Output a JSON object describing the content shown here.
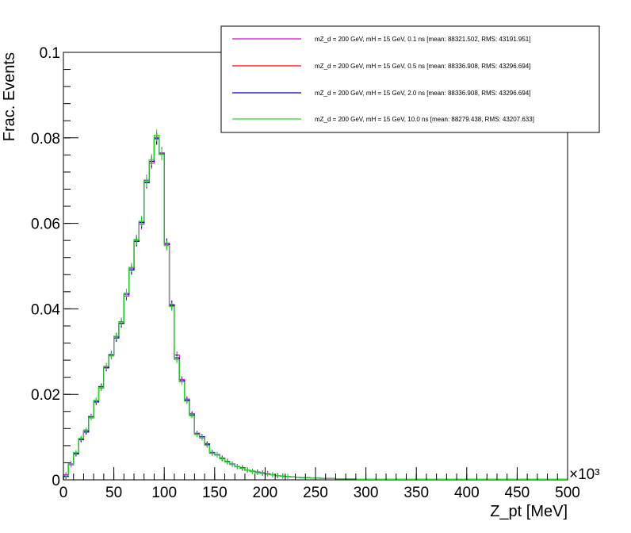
{
  "chart_data": {
    "type": "line",
    "style": "histogram-step",
    "xlabel": "Z_pt [MeV]",
    "ylabel": "Frac. Events",
    "x_multiplier": "×10³",
    "xlim": [
      0,
      500
    ],
    "ylim": [
      0,
      0.1
    ],
    "x_tick_labels": [
      "0",
      "50",
      "100",
      "150",
      "200",
      "250",
      "300",
      "350",
      "400",
      "450",
      "500"
    ],
    "y_tick_labels": [
      "0",
      "0.02",
      "0.04",
      "0.06",
      "0.08",
      "0.1"
    ],
    "x_tick_values": [
      0,
      50,
      100,
      150,
      200,
      250,
      300,
      350,
      400,
      450,
      500
    ],
    "y_tick_values": [
      0,
      0.02,
      0.04,
      0.06,
      0.08,
      0.1
    ],
    "grid": false,
    "legend_position": "top-right",
    "bin_width": 5,
    "bin_edges_start": 0,
    "series": [
      {
        "name": "mZ_d = 200 GeV, mH = 15 GeV, 0.1 ns [mean: 88321.502, RMS: 43191.951]",
        "color": "#e000e0",
        "values": [
          0.0012,
          0.0035,
          0.0063,
          0.0096,
          0.0115,
          0.0145,
          0.0185,
          0.0215,
          0.0265,
          0.029,
          0.0335,
          0.037,
          0.043,
          0.0495,
          0.0562,
          0.0598,
          0.0701,
          0.0741,
          0.0801,
          0.0765,
          0.055,
          0.041,
          0.0292,
          0.0235,
          0.0189,
          0.0155,
          0.0109,
          0.0098,
          0.0082,
          0.0062,
          0.0058,
          0.0051,
          0.0042,
          0.0036,
          0.0031,
          0.0027,
          0.0023,
          0.002,
          0.0018,
          0.0015,
          0.0014,
          0.0012,
          0.001,
          0.0009,
          0.0008,
          0.0007,
          0.0006,
          0.0005,
          0.0005,
          0.0004,
          0.0004,
          0.0003,
          0.0003,
          0.0003,
          0.0002,
          0.0002,
          0.0002,
          0.0002,
          0.0001,
          0.0001,
          0.0001,
          0.0001,
          0.0001,
          0.0001,
          0.0001,
          0.0001,
          0.0001,
          0.0001,
          0.0001,
          0.0001,
          0.0001,
          0.0001,
          0.0001,
          0.0001,
          0.0001,
          0.0001,
          0.0001,
          0.0001,
          0.0001,
          0.0001,
          0.0001,
          0.0001,
          0.0001,
          0.0001,
          0.0001,
          0.0001,
          0.0001,
          0.0001,
          0.0001,
          0.0001,
          0.0001,
          0.0001,
          0.0001,
          0.0001,
          0.0001,
          0.0001,
          0.0001,
          0.0001,
          0.0001,
          0.0001
        ]
      },
      {
        "name": "mZ_d = 200 GeV, mH = 15 GeV, 0.5 ns [mean: 88336.908, RMS: 43296.694]",
        "color": "#ff0000",
        "values": [
          0.0008,
          0.0037,
          0.0061,
          0.0094,
          0.0112,
          0.0148,
          0.0182,
          0.0218,
          0.0262,
          0.0293,
          0.0332,
          0.0366,
          0.0434,
          0.0491,
          0.0558,
          0.0602,
          0.0695,
          0.0745,
          0.0798,
          0.0762,
          0.0553,
          0.0408,
          0.0285,
          0.0232,
          0.0186,
          0.0152,
          0.0107,
          0.0101,
          0.0084,
          0.0064,
          0.0059,
          0.005,
          0.0043,
          0.0037,
          0.0031,
          0.0028,
          0.0023,
          0.002,
          0.0018,
          0.0016,
          0.0014,
          0.0012,
          0.001,
          0.0009,
          0.0008,
          0.0007,
          0.0006,
          0.0005,
          0.0005,
          0.0004,
          0.0004,
          0.0003,
          0.0003,
          0.0003,
          0.0002,
          0.0002,
          0.0002,
          0.0002,
          0.0001,
          0.0001,
          0.0001,
          0.0001,
          0.0001,
          0.0001,
          0.0001,
          0.0001,
          0.0001,
          0.0001,
          0.0001,
          0.0001,
          0.0001,
          0.0001,
          0.0001,
          0.0001,
          0.0001,
          0.0001,
          0.0001,
          0.0001,
          0.0001,
          0.0001,
          0.0001,
          0.0001,
          0.0001,
          0.0001,
          0.0001,
          0.0001,
          0.0001,
          0.0001,
          0.0001,
          0.0001,
          0.0001,
          0.0001,
          0.0001,
          0.0001,
          0.0001,
          0.0001,
          0.0001,
          0.0001,
          0.0001,
          0.0001
        ]
      },
      {
        "name": "mZ_d = 200 GeV, mH = 15 GeV, 2.0 ns [mean: 88336.908, RMS: 43296.694]",
        "color": "#0000cc",
        "values": [
          0.0008,
          0.0037,
          0.0061,
          0.0094,
          0.0112,
          0.0148,
          0.0182,
          0.0218,
          0.0262,
          0.0293,
          0.0332,
          0.0366,
          0.0434,
          0.0491,
          0.0558,
          0.0602,
          0.0695,
          0.0745,
          0.0798,
          0.0762,
          0.0553,
          0.0408,
          0.0285,
          0.0232,
          0.0186,
          0.0152,
          0.0107,
          0.0101,
          0.0084,
          0.0064,
          0.0059,
          0.005,
          0.0043,
          0.0037,
          0.0031,
          0.0028,
          0.0023,
          0.002,
          0.0018,
          0.0016,
          0.0014,
          0.0012,
          0.001,
          0.0009,
          0.0008,
          0.0007,
          0.0006,
          0.0005,
          0.0005,
          0.0004,
          0.0004,
          0.0003,
          0.0003,
          0.0003,
          0.0002,
          0.0002,
          0.0002,
          0.0002,
          0.0001,
          0.0001,
          0.0001,
          0.0001,
          0.0001,
          0.0001,
          0.0001,
          0.0001,
          0.0001,
          0.0001,
          0.0001,
          0.0001,
          0.0001,
          0.0001,
          0.0001,
          0.0001,
          0.0001,
          0.0001,
          0.0001,
          0.0001,
          0.0001,
          0.0001,
          0.0001,
          0.0001,
          0.0001,
          0.0001,
          0.0001,
          0.0001,
          0.0001,
          0.0001,
          0.0001,
          0.0001,
          0.0001,
          0.0001,
          0.0001,
          0.0001,
          0.0001,
          0.0001,
          0.0001,
          0.0001,
          0.0001,
          0.0001
        ]
      },
      {
        "name": "mZ_d = 200 GeV, mH = 15 GeV, 10.0 ns [mean: 88279.438, RMS: 43207.633]",
        "color": "#22dd22",
        "values": [
          0.001,
          0.0036,
          0.0064,
          0.0097,
          0.0117,
          0.0146,
          0.0186,
          0.0216,
          0.0266,
          0.0291,
          0.0336,
          0.0369,
          0.0437,
          0.0497,
          0.0561,
          0.0605,
          0.0698,
          0.0749,
          0.0806,
          0.0761,
          0.0548,
          0.0405,
          0.0281,
          0.0229,
          0.0184,
          0.015,
          0.0106,
          0.0099,
          0.0081,
          0.0063,
          0.0058,
          0.0049,
          0.0042,
          0.0036,
          0.0031,
          0.0027,
          0.0023,
          0.0019,
          0.0017,
          0.0015,
          0.0013,
          0.0012,
          0.001,
          0.0009,
          0.0008,
          0.0007,
          0.0006,
          0.0005,
          0.0005,
          0.0004,
          0.0004,
          0.0003,
          0.0003,
          0.0003,
          0.0002,
          0.0002,
          0.0002,
          0.0002,
          0.0001,
          0.0001,
          0.0001,
          0.0001,
          0.0001,
          0.0001,
          0.0001,
          0.0001,
          0.0001,
          0.0001,
          0.0001,
          0.0001,
          0.0001,
          0.0001,
          0.0001,
          0.0001,
          0.0001,
          0.0001,
          0.0001,
          0.0001,
          0.0001,
          0.0001,
          0.0001,
          0.0001,
          0.0001,
          0.0001,
          0.0001,
          0.0001,
          0.0001,
          0.0001,
          0.0001,
          0.0001,
          0.0001,
          0.0001,
          0.0001,
          0.0001,
          0.0001,
          0.0001,
          0.0001,
          0.0001,
          0.0001,
          0.0001
        ]
      }
    ]
  }
}
